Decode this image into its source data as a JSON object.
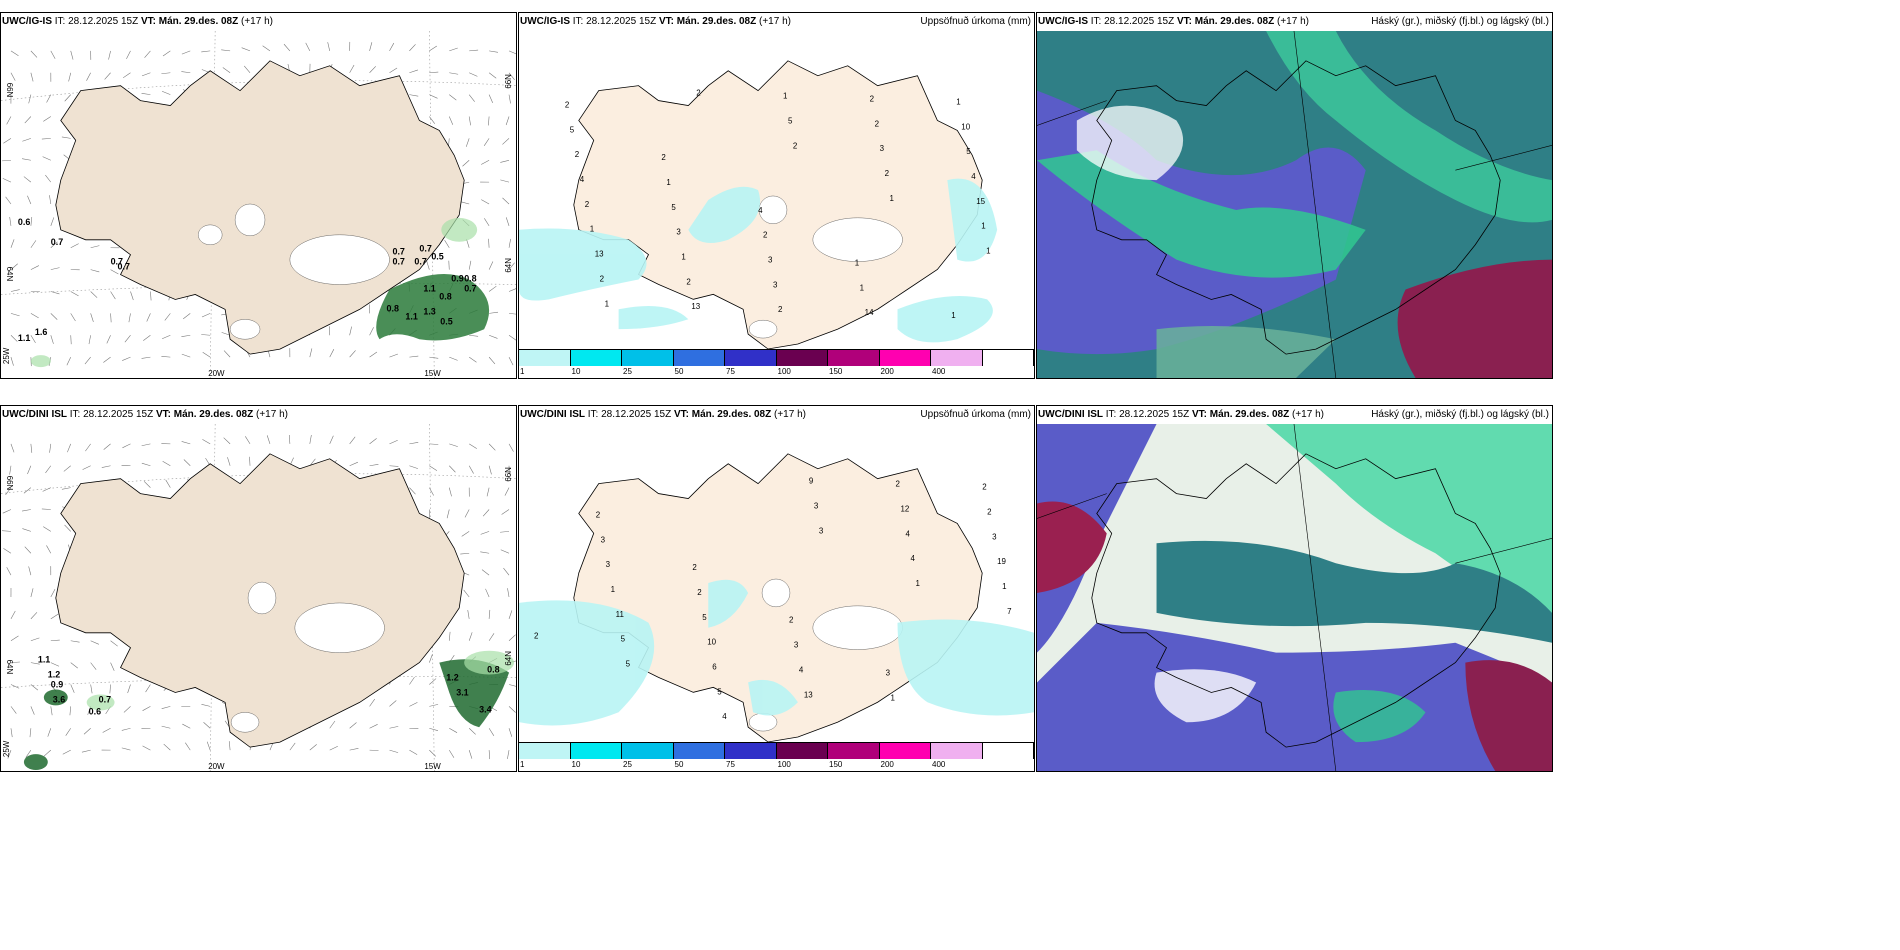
{
  "panels": {
    "top_left": {
      "model": "UWC/IG-IS",
      "it_label": "IT:",
      "issue": "28.12.2025 15Z",
      "vt_label": "VT:",
      "valid": "Mán. 29.des. 08Z",
      "lead": "(+17 h)",
      "right_title": ""
    },
    "top_mid": {
      "model": "UWC/IG-IS",
      "it_label": "IT:",
      "issue": "28.12.2025 15Z",
      "vt_label": "VT:",
      "valid": "Mán. 29.des. 08Z",
      "lead": "(+17 h)",
      "right_title": "Uppsöfnuð úrkoma (mm)"
    },
    "top_right": {
      "model": "UWC/IG-IS",
      "it_label": "IT:",
      "issue": "28.12.2025 15Z",
      "vt_label": "VT:",
      "valid": "Mán. 29.des. 08Z",
      "lead": "(+17 h)",
      "right_title": "Háský (gr.), miðský (fj.bl.) og lágský (bl.)"
    },
    "bot_left": {
      "model": "UWC/DINI ISL",
      "it_label": "IT:",
      "issue": "28.12.2025 15Z",
      "vt_label": "VT:",
      "valid": "Mán. 29.des. 08Z",
      "lead": "(+17 h)",
      "right_title": ""
    },
    "bot_mid": {
      "model": "UWC/DINI ISL",
      "it_label": "IT:",
      "issue": "28.12.2025 15Z",
      "vt_label": "VT:",
      "valid": "Mán. 29.des. 08Z",
      "lead": "(+17 h)",
      "right_title": "Uppsöfnuð úrkoma (mm)"
    },
    "bot_right": {
      "model": "UWC/DINI ISL",
      "it_label": "IT:",
      "issue": "28.12.2025 15Z",
      "vt_label": "VT:",
      "valid": "Mán. 29.des. 08Z",
      "lead": "(+17 h)",
      "right_title": "Háský (gr.), miðský (fj.bl.) og lágský (bl.)"
    }
  },
  "axis_labels": {
    "lon_20w": "20W",
    "lon_15w": "15W",
    "lon_25w": "25W",
    "lat_66n": "66N",
    "lat_64n": "64N"
  },
  "precip_colorbar": {
    "ticks": [
      "1",
      "10",
      "25",
      "50",
      "75",
      "100",
      "150",
      "200",
      "400",
      ""
    ],
    "colors": [
      "#bff5f5",
      "#00e8f0",
      "#00c0e8",
      "#2f6fe0",
      "#3030c8",
      "#6a0050",
      "#b0007a",
      "#ff00b0",
      "#f0b0f0",
      "#ffffff"
    ]
  },
  "wind_precip_top": [
    "0.6",
    "0.7",
    "0.7",
    "0.7",
    "0.5",
    "0.7",
    "0.9",
    "0.8",
    "0.7",
    "0.8",
    "0.8",
    "1.1",
    "1.3",
    "1.1",
    "0.5",
    "1.6",
    "1.1",
    "0.7",
    "0.7",
    "0.7"
  ],
  "wind_precip_bot": [
    "1.1",
    "1.2",
    "0.9",
    "3.6",
    "0.7",
    "0.6",
    "0.8",
    "1.2",
    "3.1",
    "3.4"
  ],
  "precip_top": [
    "2",
    "2",
    "4",
    "1",
    "1",
    "5",
    "1",
    "2",
    "1",
    "1",
    "2",
    "5",
    "3",
    "14",
    "10",
    "4",
    "3",
    "3",
    "2",
    "5",
    "2",
    "1",
    "2",
    "2",
    "4",
    "1",
    "2",
    "1",
    "3",
    "15",
    "13",
    "13",
    "5",
    "2",
    "1",
    "2",
    "2",
    "2",
    "1",
    "1",
    "1"
  ],
  "precip_bot": [
    "2",
    "2",
    "2",
    "3",
    "2",
    "3",
    "2",
    "3",
    "1",
    "2",
    "3",
    "5",
    "4",
    "2",
    "3",
    "1",
    "10",
    "13",
    "12",
    "19",
    "11",
    "6",
    "9",
    "4",
    "1",
    "5",
    "5",
    "3",
    "4",
    "7",
    "5",
    "4",
    "3",
    "1",
    "2"
  ]
}
